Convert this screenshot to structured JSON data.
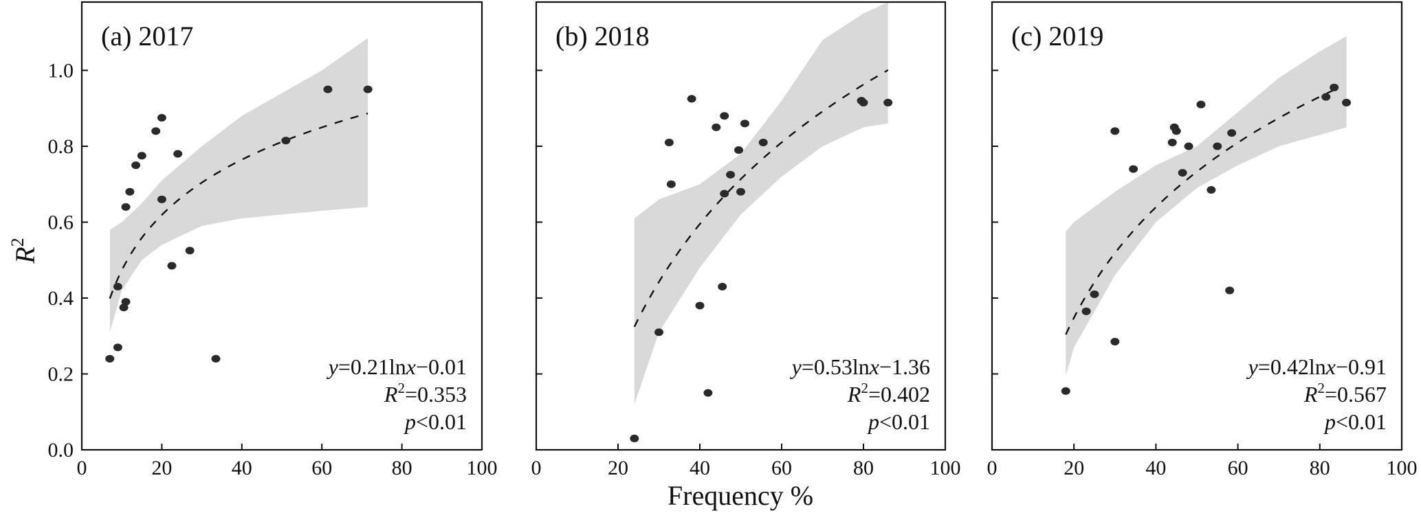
{
  "chart_data": [
    {
      "type": "scatter",
      "title": "(a) 2017",
      "xlim": [
        0,
        100
      ],
      "ylim": [
        0,
        1.18
      ],
      "xticks": [
        "0",
        "20",
        "40",
        "60",
        "80",
        "100"
      ],
      "yticks": [
        "0.0",
        "0.2",
        "0.4",
        "0.6",
        "0.8",
        "1.0"
      ],
      "fit": {
        "a": 0.21,
        "b": -0.01,
        "xrange": [
          7,
          71.5
        ]
      },
      "equation": {
        "lhs": "y",
        "eq": "=0.21ln",
        "var": "x",
        "rhs": "−0.01",
        "r2_label": "R",
        "r2_sup": "2",
        "r2_value": "=0.353",
        "p_label": "p",
        "p_value": "<0.01"
      },
      "points": [
        [
          7,
          0.24
        ],
        [
          9,
          0.27
        ],
        [
          9,
          0.43
        ],
        [
          10.5,
          0.375
        ],
        [
          11,
          0.39
        ],
        [
          11,
          0.64
        ],
        [
          12,
          0.68
        ],
        [
          13.5,
          0.75
        ],
        [
          15,
          0.775
        ],
        [
          18.5,
          0.84
        ],
        [
          20,
          0.875
        ],
        [
          20,
          0.66
        ],
        [
          22.5,
          0.485
        ],
        [
          24,
          0.78
        ],
        [
          27,
          0.525
        ],
        [
          33.5,
          0.24
        ],
        [
          51,
          0.815
        ],
        [
          61.5,
          0.95
        ],
        [
          71.5,
          0.95
        ]
      ],
      "band_upper": [
        [
          7,
          0.58
        ],
        [
          10,
          0.6
        ],
        [
          15,
          0.65
        ],
        [
          20,
          0.71
        ],
        [
          30,
          0.8
        ],
        [
          40,
          0.88
        ],
        [
          50,
          0.94
        ],
        [
          60,
          1.0
        ],
        [
          71.5,
          1.085
        ]
      ],
      "band_lower": [
        [
          7,
          0.31
        ],
        [
          10,
          0.42
        ],
        [
          15,
          0.5
        ],
        [
          20,
          0.54
        ],
        [
          30,
          0.59
        ],
        [
          40,
          0.61
        ],
        [
          50,
          0.62
        ],
        [
          60,
          0.63
        ],
        [
          71.5,
          0.64
        ]
      ]
    },
    {
      "type": "scatter",
      "title": "(b) 2018",
      "xlim": [
        0,
        100
      ],
      "ylim": [
        0,
        1.18
      ],
      "xticks": [
        "0",
        "20",
        "40",
        "60",
        "80",
        "100"
      ],
      "fit": {
        "a": 0.53,
        "b": -1.36,
        "xrange": [
          24,
          86
        ]
      },
      "equation": {
        "lhs": "y",
        "eq": "=0.53ln",
        "var": "x",
        "rhs": "−1.36",
        "r2_label": "R",
        "r2_sup": "2",
        "r2_value": "=0.402",
        "p_label": "p",
        "p_value": "<0.01"
      },
      "points": [
        [
          24,
          0.03
        ],
        [
          30,
          0.31
        ],
        [
          32.5,
          0.81
        ],
        [
          33,
          0.7
        ],
        [
          38,
          0.925
        ],
        [
          40,
          0.38
        ],
        [
          42,
          0.15
        ],
        [
          44,
          0.85
        ],
        [
          45.5,
          0.43
        ],
        [
          46,
          0.675
        ],
        [
          46,
          0.88
        ],
        [
          47.5,
          0.725
        ],
        [
          49.5,
          0.79
        ],
        [
          50,
          0.68
        ],
        [
          51,
          0.86
        ],
        [
          55.5,
          0.81
        ],
        [
          79.5,
          0.92
        ],
        [
          80,
          0.915
        ],
        [
          86,
          0.915
        ]
      ],
      "band_upper": [
        [
          24,
          0.61
        ],
        [
          30,
          0.66
        ],
        [
          40,
          0.7
        ],
        [
          50,
          0.78
        ],
        [
          60,
          0.92
        ],
        [
          70,
          1.08
        ],
        [
          80,
          1.15
        ],
        [
          86,
          1.18
        ]
      ],
      "band_lower": [
        [
          24,
          0.12
        ],
        [
          30,
          0.31
        ],
        [
          40,
          0.48
        ],
        [
          50,
          0.62
        ],
        [
          60,
          0.72
        ],
        [
          70,
          0.8
        ],
        [
          80,
          0.85
        ],
        [
          86,
          0.86
        ]
      ]
    },
    {
      "type": "scatter",
      "title": "(c) 2019",
      "xlim": [
        0,
        100
      ],
      "ylim": [
        0,
        1.18
      ],
      "xticks": [
        "0",
        "20",
        "40",
        "60",
        "80",
        "100"
      ],
      "fit": {
        "a": 0.42,
        "b": -0.91,
        "xrange": [
          18,
          84
        ]
      },
      "equation": {
        "lhs": "y",
        "eq": "=0.42ln",
        "var": "x",
        "rhs": "−0.91",
        "r2_label": "R",
        "r2_sup": "2",
        "r2_value": "=0.567",
        "p_label": "p",
        "p_value": "<0.01"
      },
      "points": [
        [
          18,
          0.155
        ],
        [
          23,
          0.365
        ],
        [
          25,
          0.41
        ],
        [
          30,
          0.84
        ],
        [
          30,
          0.285
        ],
        [
          34.5,
          0.74
        ],
        [
          44,
          0.81
        ],
        [
          44.5,
          0.85
        ],
        [
          45,
          0.84
        ],
        [
          46.5,
          0.73
        ],
        [
          48,
          0.8
        ],
        [
          51,
          0.91
        ],
        [
          53.5,
          0.685
        ],
        [
          55,
          0.8
        ],
        [
          58,
          0.42
        ],
        [
          58.5,
          0.835
        ],
        [
          81.5,
          0.93
        ],
        [
          83.5,
          0.955
        ],
        [
          86.5,
          0.915
        ]
      ],
      "band_upper": [
        [
          18,
          0.575
        ],
        [
          20,
          0.6
        ],
        [
          30,
          0.68
        ],
        [
          40,
          0.75
        ],
        [
          50,
          0.8
        ],
        [
          60,
          0.89
        ],
        [
          70,
          0.98
        ],
        [
          80,
          1.05
        ],
        [
          86.5,
          1.09
        ]
      ],
      "band_lower": [
        [
          18,
          0.195
        ],
        [
          20,
          0.27
        ],
        [
          30,
          0.46
        ],
        [
          40,
          0.6
        ],
        [
          50,
          0.69
        ],
        [
          60,
          0.75
        ],
        [
          70,
          0.8
        ],
        [
          80,
          0.83
        ],
        [
          86.5,
          0.85
        ]
      ]
    }
  ],
  "labels": {
    "ylabel": "R",
    "ylabel_sup": "2",
    "xlabel": "Frequency %"
  },
  "colors": {
    "band": "#d9d9d9",
    "point": "#2a2a2a",
    "axis": "#111111"
  }
}
